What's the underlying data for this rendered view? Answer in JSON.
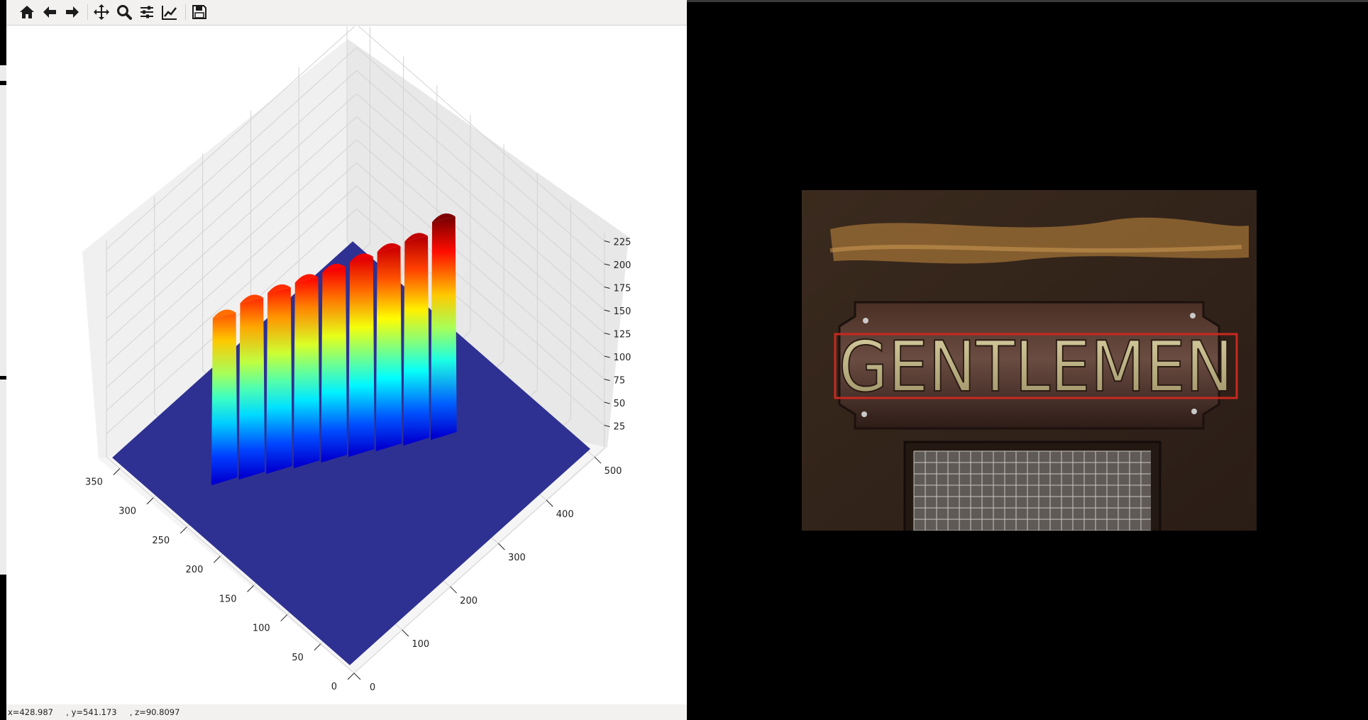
{
  "status": {
    "x": "x=428.987",
    "y": ", y=541.173",
    "z": ", z=90.8097"
  },
  "toolbar": {
    "home_icon": "home-icon",
    "back_icon": "arrow-left-icon",
    "forward_icon": "arrow-right-icon",
    "pan_icon": "move-icon",
    "zoom_icon": "magnifier-icon",
    "subplots_icon": "sliders-icon",
    "axes_icon": "line-chart-icon",
    "save_icon": "floppy-disk-icon"
  },
  "photo": {
    "sign_text": "GENTLEMEN"
  },
  "chart_data": {
    "type": "surface3d",
    "colormap": "jet",
    "x_axis": {
      "ticks": [
        "0",
        "50",
        "100",
        "150",
        "200",
        "250",
        "300",
        "350"
      ],
      "range": [
        0,
        370
      ]
    },
    "y_axis": {
      "ticks": [
        "0",
        "100",
        "200",
        "300",
        "400",
        "500"
      ],
      "range": [
        0,
        520
      ]
    },
    "z_axis": {
      "ticks": [
        "25",
        "50",
        "75",
        "100",
        "125",
        "150",
        "175",
        "200",
        "225"
      ],
      "range": [
        0,
        235
      ]
    },
    "grid": true,
    "ridges": {
      "count": 9,
      "peak_z": [
        180,
        190,
        195,
        200,
        205,
        210,
        215,
        220,
        235
      ],
      "start_z": 180,
      "end_z": 235
    },
    "floor_z": 0
  }
}
